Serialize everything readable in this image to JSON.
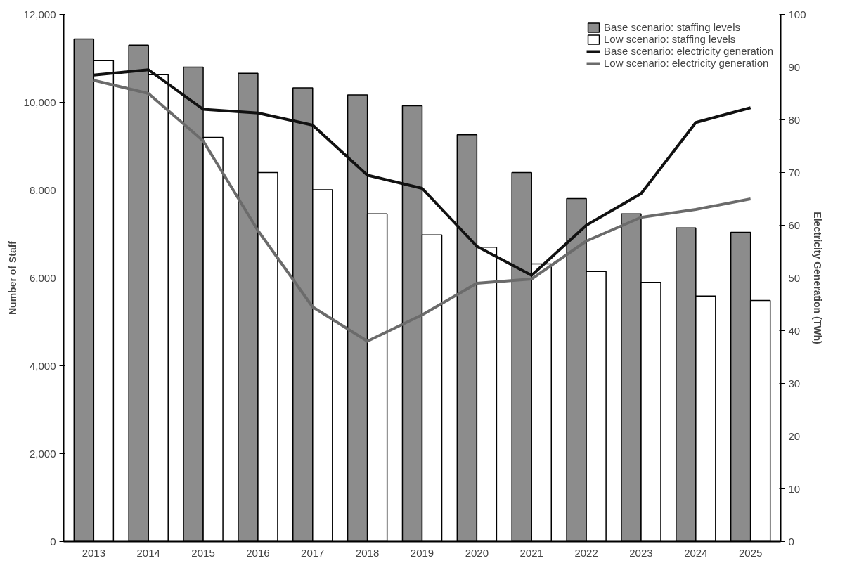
{
  "chart_data": {
    "type": "bar",
    "ylabel": "Number of Staff",
    "y2label": "Electricity Generation (TWh)",
    "categories": [
      "2013",
      "2014",
      "2015",
      "2016",
      "2017",
      "2018",
      "2019",
      "2020",
      "2021",
      "2022",
      "2023",
      "2024",
      "2025"
    ],
    "series": [
      {
        "name": "Base scenario: staffing levels",
        "color": "#8c8c8c",
        "values": [
          11440,
          11300,
          10800,
          10660,
          10330,
          10170,
          9920,
          9260,
          8400,
          7810,
          7460,
          7140,
          7040
        ]
      },
      {
        "name": "Low scenario: staffing levels",
        "color": "#ffffff",
        "values": [
          10950,
          10630,
          9200,
          8400,
          8010,
          7460,
          6980,
          6700,
          6320,
          6150,
          5900,
          5590,
          5490
        ]
      },
      {
        "name": "Base scenario: electricity generation",
        "type": "line",
        "axis": "y2",
        "color": "#111111",
        "values": [
          88.5,
          89.5,
          82,
          81.3,
          79,
          69.5,
          67,
          56,
          50.5,
          60,
          66,
          79.5,
          82.3
        ]
      },
      {
        "name": "Low scenario: electricity generation",
        "type": "line",
        "axis": "y2",
        "color": "#6b6b6b",
        "values": [
          87.5,
          85,
          76,
          59,
          44.5,
          38,
          43,
          49,
          49.8,
          57,
          61.5,
          63,
          65
        ]
      }
    ],
    "ylim": [
      0,
      12000
    ],
    "yticks": [
      {
        "value": 0,
        "label": "0"
      },
      {
        "value": 2000,
        "label": "2,000"
      },
      {
        "value": 4000,
        "label": "4,000"
      },
      {
        "value": 6000,
        "label": "6,000"
      },
      {
        "value": 8000,
        "label": "8,000"
      },
      {
        "value": 10000,
        "label": "10,000"
      },
      {
        "value": 12000,
        "label": "12,000"
      }
    ],
    "y2lim": [
      0,
      100
    ],
    "y2ticks": [
      0,
      10,
      20,
      30,
      40,
      50,
      60,
      70,
      80,
      90,
      100
    ],
    "grid": false,
    "legend": "top right",
    "line_style": "solid"
  }
}
